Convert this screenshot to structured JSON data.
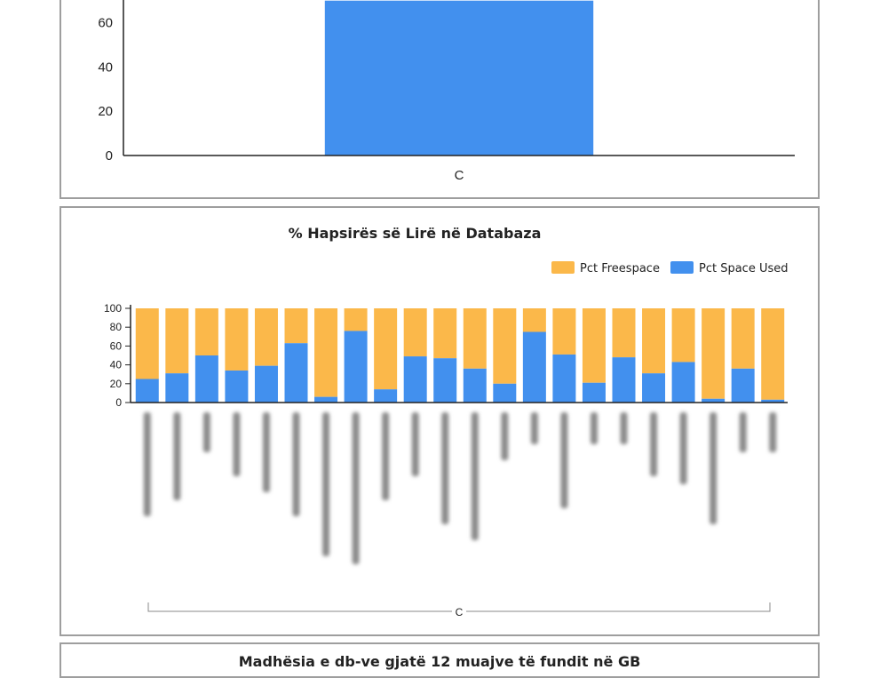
{
  "colors": {
    "used": "#4290ee",
    "free": "#fbb84a",
    "axis": "#222222",
    "panel_border": "#9e9e9e"
  },
  "top_chart": {
    "chart_data": {
      "type": "bar",
      "categories": [
        "C"
      ],
      "values": [
        70
      ],
      "y_ticks": [
        0,
        20,
        40,
        60
      ],
      "ylim": [
        0,
        70
      ]
    }
  },
  "mid_chart": {
    "title": "% Hapsirës së Lirë në Databaza",
    "legend": [
      "Pct Freespace",
      "Pct Space Used"
    ],
    "bracket_label": "C",
    "chart_data": {
      "type": "bar",
      "stacked": true,
      "ylim": [
        0,
        100
      ],
      "y_ticks": [
        0,
        20,
        40,
        60,
        80,
        100
      ],
      "series": [
        {
          "name": "Pct Space Used",
          "values": [
            25,
            31,
            50,
            34,
            39,
            63,
            6,
            76,
            14,
            49,
            47,
            36,
            20,
            75,
            51,
            21,
            48,
            31,
            43,
            4,
            36,
            3
          ]
        },
        {
          "name": "Pct Freespace",
          "values": [
            75,
            69,
            50,
            66,
            61,
            37,
            94,
            24,
            86,
            51,
            53,
            64,
            80,
            25,
            49,
            79,
            52,
            69,
            57,
            96,
            64,
            97
          ]
        }
      ],
      "legend_position": "top-right"
    }
  },
  "bottom_chart": {
    "title": "Madhësia e db-ve gjatë 12 muajve të fundit në GB"
  }
}
